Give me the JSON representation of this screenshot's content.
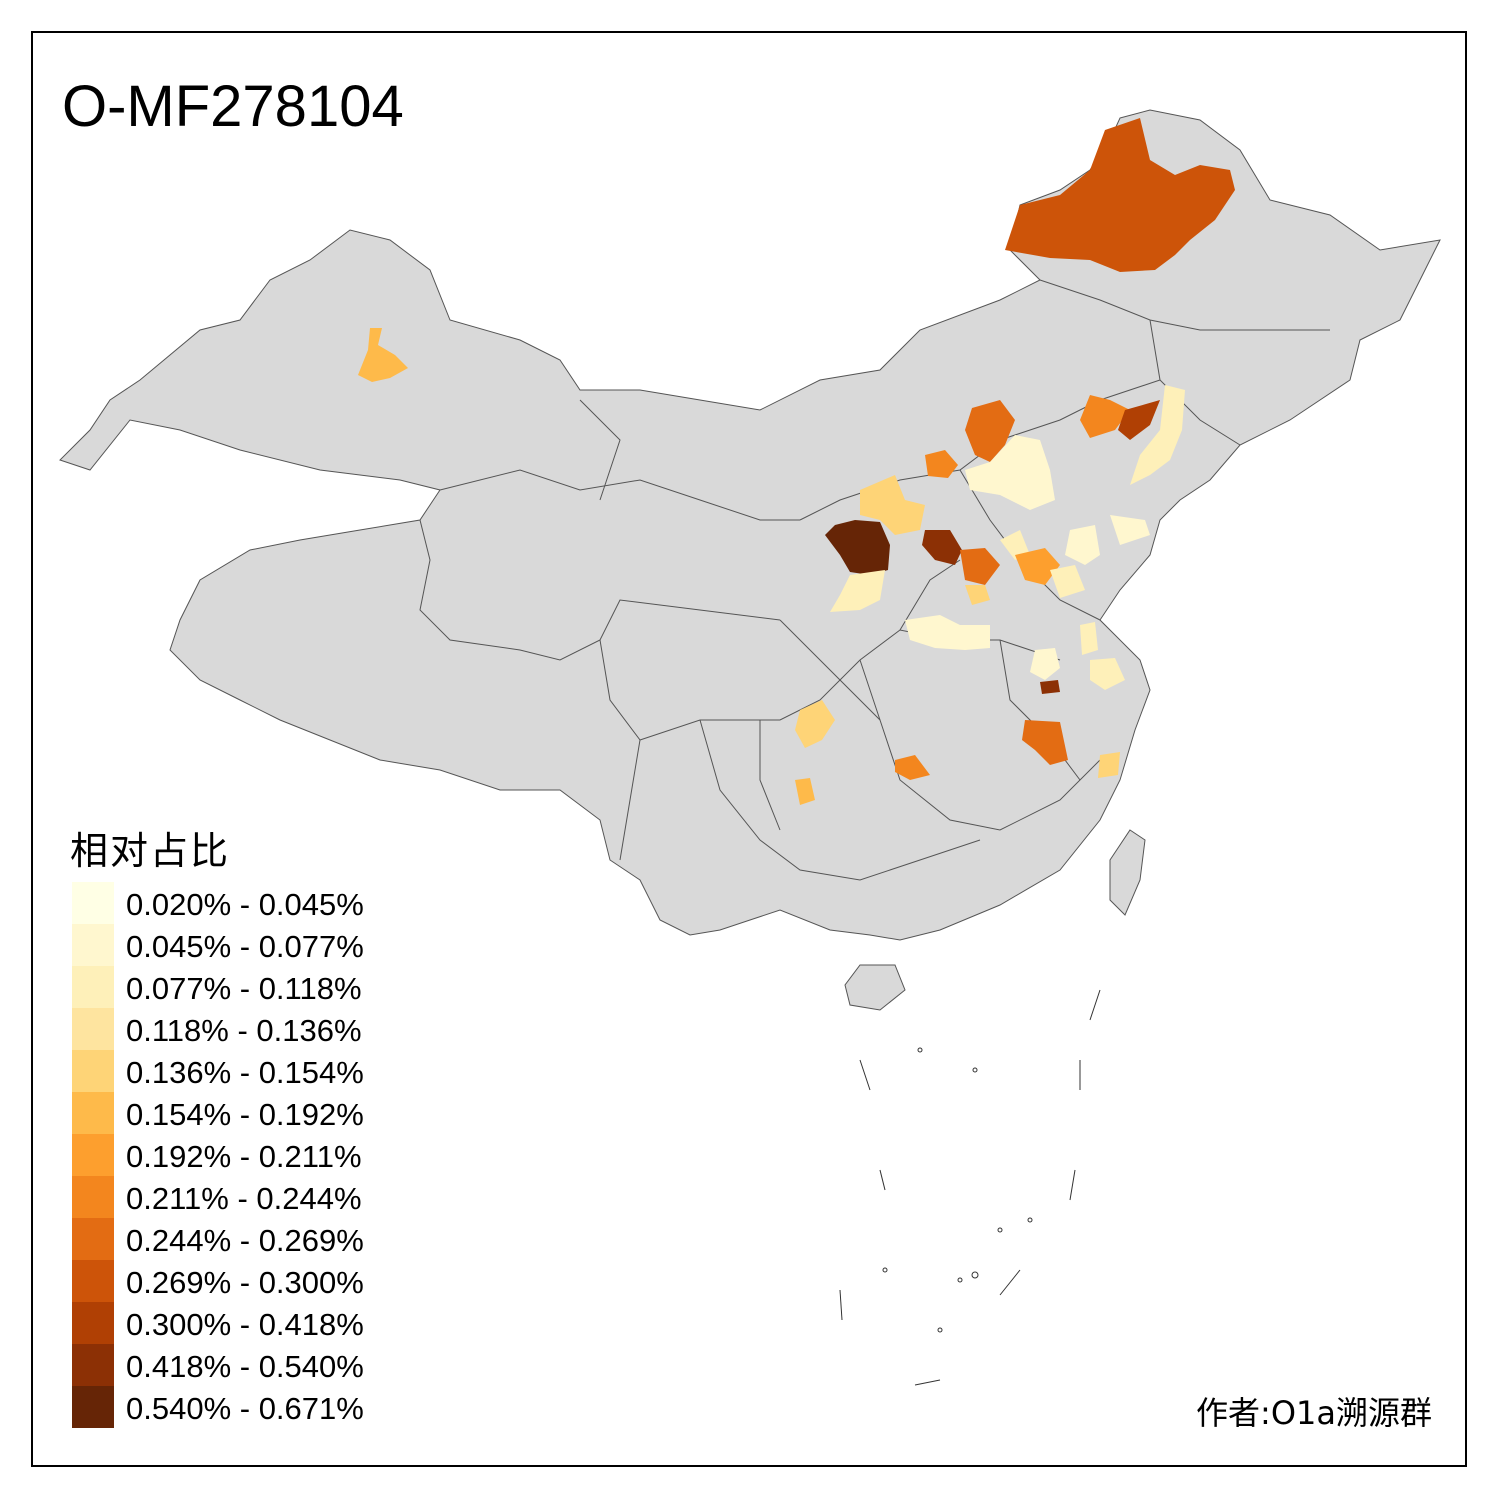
{
  "map": {
    "title": "O-MF278104",
    "legend_title": "相对占比",
    "credit": "作者:O1a溯源群",
    "base_color": "#d9d9d9",
    "border_color": "#555555",
    "legend": [
      {
        "label": "0.020% - 0.045%",
        "color": "#ffffe5"
      },
      {
        "label": "0.045% - 0.077%",
        "color": "#fff7cf"
      },
      {
        "label": "0.077% - 0.118%",
        "color": "#fef0b9"
      },
      {
        "label": "0.118% - 0.136%",
        "color": "#fee49f"
      },
      {
        "label": "0.136% - 0.154%",
        "color": "#fed477"
      },
      {
        "label": "0.154% - 0.192%",
        "color": "#feba4a"
      },
      {
        "label": "0.192% - 0.211%",
        "color": "#fd9f2e"
      },
      {
        "label": "0.211% - 0.244%",
        "color": "#f3861e"
      },
      {
        "label": "0.244% - 0.269%",
        "color": "#e36c13"
      },
      {
        "label": "0.269% - 0.300%",
        "color": "#cd5409"
      },
      {
        "label": "0.300% - 0.418%",
        "color": "#b04004"
      },
      {
        "label": "0.418% - 0.540%",
        "color": "#8c3005"
      },
      {
        "label": "0.540% - 0.671%",
        "color": "#662506"
      }
    ]
  }
}
